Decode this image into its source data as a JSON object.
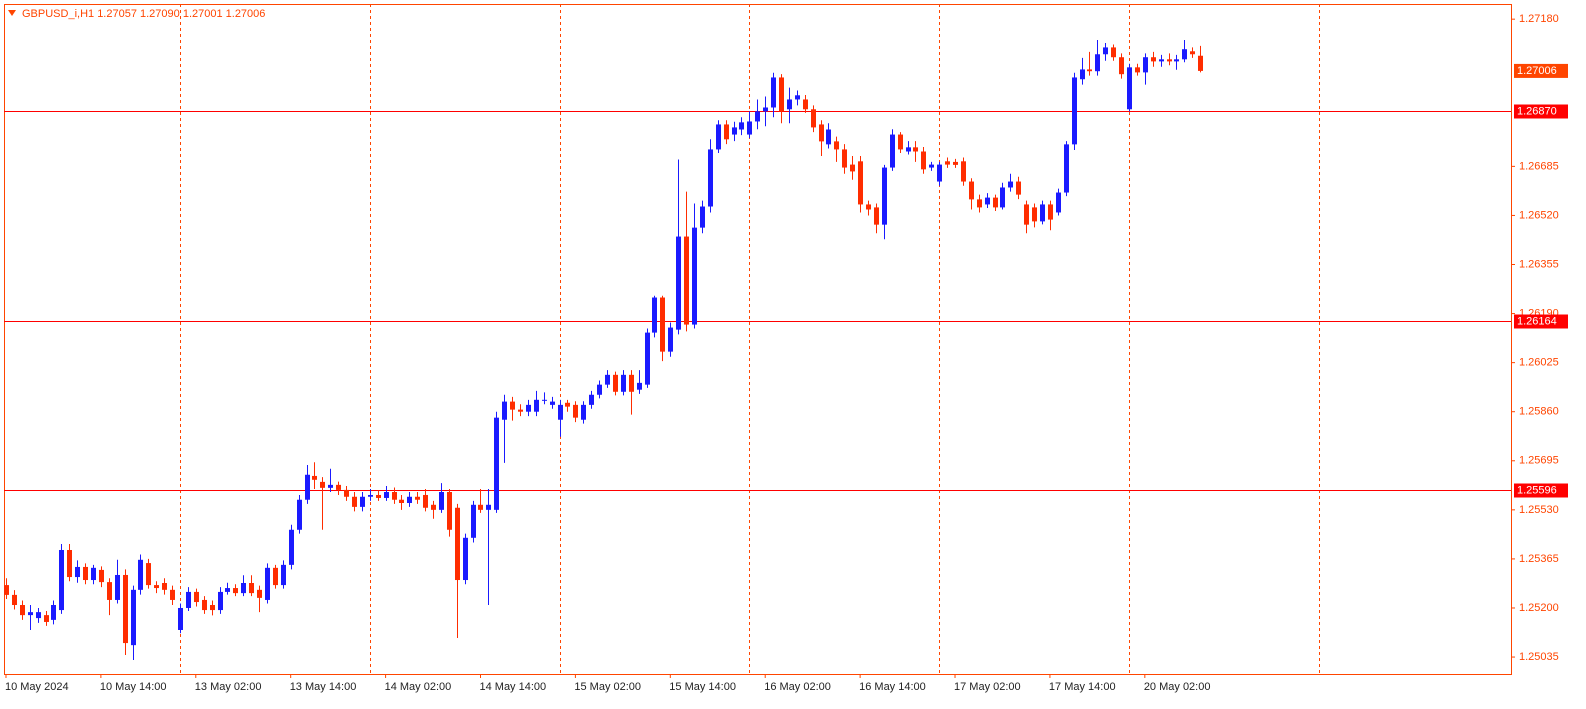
{
  "chart_data": {
    "type": "candlestick",
    "title": "GBPUSD_i,H1  1.27057 1.27090 1.27001 1.27006",
    "bull_color": "#1a1aff",
    "bear_color": "#ff2d00",
    "grid_color": "#ff4500",
    "level_color": "#ff0000",
    "ylim": [
      1.24978,
      1.27231
    ],
    "xlim": [
      -0.25,
      190.3
    ],
    "yticks": [
      {
        "value": 1.2718,
        "label": "1.27180"
      },
      {
        "value": 1.26685,
        "label": "1.26685"
      },
      {
        "value": 1.2652,
        "label": "1.26520"
      },
      {
        "value": 1.26355,
        "label": "1.26355"
      },
      {
        "value": 1.2619,
        "label": "1.26190"
      },
      {
        "value": 1.26025,
        "label": "1.26025"
      },
      {
        "value": 1.2586,
        "label": "1.25860"
      },
      {
        "value": 1.25695,
        "label": "1.25695"
      },
      {
        "value": 1.2553,
        "label": "1.25530"
      },
      {
        "value": 1.25365,
        "label": "1.25365"
      },
      {
        "value": 1.252,
        "label": "1.25200"
      },
      {
        "value": 1.25035,
        "label": "1.25035"
      }
    ],
    "xticks": [
      {
        "value": 0,
        "label": "10 May 2024"
      },
      {
        "value": 12,
        "label": "10 May 14:00"
      },
      {
        "value": 24,
        "label": "13 May 02:00"
      },
      {
        "value": 36,
        "label": "13 May 14:00"
      },
      {
        "value": 48,
        "label": "14 May 02:00"
      },
      {
        "value": 60,
        "label": "14 May 14:00"
      },
      {
        "value": 72,
        "label": "15 May 02:00"
      },
      {
        "value": 84,
        "label": "15 May 14:00"
      },
      {
        "value": 96,
        "label": "16 May 02:00"
      },
      {
        "value": 108,
        "label": "16 May 14:00"
      },
      {
        "value": 120,
        "label": "17 May 02:00"
      },
      {
        "value": 132,
        "label": "17 May 14:00"
      },
      {
        "value": 144,
        "label": "20 May 02:00"
      }
    ],
    "xgrid": [
      22,
      46,
      70,
      94,
      118,
      142,
      166
    ],
    "hlines": [
      {
        "value": 1.2687,
        "label": "1.26870"
      },
      {
        "value": 1.26164,
        "label": "1.26164"
      },
      {
        "value": 1.25596,
        "label": "1.25596"
      }
    ],
    "price_label": {
      "value": 1.27006,
      "label": "1.27006"
    },
    "ohlc": [
      [
        1.25277,
        1.253,
        1.2523,
        1.25244
      ],
      [
        1.25244,
        1.2526,
        1.25195,
        1.2521
      ],
      [
        1.2521,
        1.25225,
        1.2516,
        1.25176
      ],
      [
        1.25176,
        1.2521,
        1.25126,
        1.25186
      ],
      [
        1.25166,
        1.252,
        1.2515,
        1.25186
      ],
      [
        1.25176,
        1.2519,
        1.2514,
        1.25153
      ],
      [
        1.2516,
        1.25225,
        1.25145,
        1.2521
      ],
      [
        1.25193,
        1.25415,
        1.2518,
        1.25395
      ],
      [
        1.25395,
        1.25415,
        1.2529,
        1.25304
      ],
      [
        1.25304,
        1.2536,
        1.25285,
        1.25338
      ],
      [
        1.25338,
        1.2535,
        1.2528,
        1.25294
      ],
      [
        1.25294,
        1.25345,
        1.2528,
        1.25335
      ],
      [
        1.25328,
        1.2534,
        1.2527,
        1.25287
      ],
      [
        1.25287,
        1.253,
        1.25176,
        1.25227
      ],
      [
        1.25227,
        1.25362,
        1.25215,
        1.25311
      ],
      [
        1.25311,
        1.2533,
        1.25042,
        1.25082
      ],
      [
        1.25075,
        1.25275,
        1.25025,
        1.25261
      ],
      [
        1.25261,
        1.2538,
        1.25245,
        1.25362
      ],
      [
        1.25351,
        1.25365,
        1.25265,
        1.25277
      ],
      [
        1.25277,
        1.2529,
        1.2525,
        1.25267
      ],
      [
        1.25284,
        1.253,
        1.25245,
        1.25261
      ],
      [
        1.25261,
        1.25275,
        1.2521,
        1.25227
      ],
      [
        1.25126,
        1.25215,
        1.25115,
        1.252
      ],
      [
        1.252,
        1.2527,
        1.2519,
        1.25254
      ],
      [
        1.25254,
        1.25265,
        1.25205,
        1.2522
      ],
      [
        1.25227,
        1.2524,
        1.2518,
        1.25193
      ],
      [
        1.2521,
        1.25225,
        1.25175,
        1.25193
      ],
      [
        1.25193,
        1.2527,
        1.2518,
        1.25254
      ],
      [
        1.25254,
        1.25285,
        1.25245,
        1.25267
      ],
      [
        1.25267,
        1.2528,
        1.2524,
        1.2525
      ],
      [
        1.2525,
        1.2531,
        1.2524,
        1.25284
      ],
      [
        1.25284,
        1.2531,
        1.2524,
        1.2525
      ],
      [
        1.25261,
        1.25275,
        1.25186,
        1.25234
      ],
      [
        1.25227,
        1.2535,
        1.25215,
        1.25335
      ],
      [
        1.25335,
        1.25345,
        1.25265,
        1.25277
      ],
      [
        1.25277,
        1.2536,
        1.25265,
        1.25345
      ],
      [
        1.25345,
        1.2548,
        1.2533,
        1.25463
      ],
      [
        1.25463,
        1.2558,
        1.2545,
        1.25564
      ],
      [
        1.25564,
        1.25681,
        1.2555,
        1.25648
      ],
      [
        1.25644,
        1.2569,
        1.256,
        1.25631
      ],
      [
        1.25624,
        1.2564,
        1.25463,
        1.25604
      ],
      [
        1.25604,
        1.25668,
        1.2559,
        1.25614
      ],
      [
        1.25614,
        1.25625,
        1.2558,
        1.25597
      ],
      [
        1.25597,
        1.2561,
        1.2556,
        1.25574
      ],
      [
        1.25574,
        1.2559,
        1.25525,
        1.2554
      ],
      [
        1.2554,
        1.2559,
        1.25525,
        1.25574
      ],
      [
        1.25574,
        1.256,
        1.2556,
        1.2558
      ],
      [
        1.2558,
        1.25595,
        1.2556,
        1.2557
      ],
      [
        1.2557,
        1.2561,
        1.2556,
        1.2559
      ],
      [
        1.2559,
        1.25605,
        1.2555,
        1.25564
      ],
      [
        1.25564,
        1.2558,
        1.2553,
        1.25553
      ],
      [
        1.25553,
        1.2559,
        1.2554,
        1.25574
      ],
      [
        1.25574,
        1.2559,
        1.2555,
        1.25564
      ],
      [
        1.2558,
        1.256,
        1.25525,
        1.25537
      ],
      [
        1.25547,
        1.2556,
        1.255,
        1.2553
      ],
      [
        1.2553,
        1.2562,
        1.2552,
        1.2559
      ],
      [
        1.2559,
        1.256,
        1.2544,
        1.25463
      ],
      [
        1.25537,
        1.2555,
        1.25099,
        1.25294
      ],
      [
        1.25294,
        1.2545,
        1.2528,
        1.25436
      ],
      [
        1.25436,
        1.2556,
        1.2542,
        1.25547
      ],
      [
        1.25547,
        1.256,
        1.2552,
        1.2553
      ],
      [
        1.2553,
        1.256,
        1.2521,
        1.25547
      ],
      [
        1.2553,
        1.2586,
        1.2552,
        1.2584
      ],
      [
        1.25833,
        1.25917,
        1.25688,
        1.25894
      ],
      [
        1.25894,
        1.2591,
        1.2583,
        1.25867
      ],
      [
        1.25867,
        1.25885,
        1.25845,
        1.2586
      ],
      [
        1.2586,
        1.259,
        1.25845,
        1.25883
      ],
      [
        1.2586,
        1.2593,
        1.25845,
        1.259
      ],
      [
        1.259,
        1.25925,
        1.25885,
        1.259
      ],
      [
        1.25883,
        1.2591,
        1.2587,
        1.25894
      ],
      [
        1.25833,
        1.259,
        1.25776,
        1.25883
      ],
      [
        1.2589,
        1.259,
        1.2586,
        1.25877
      ],
      [
        1.25883,
        1.25895,
        1.25825,
        1.2584
      ],
      [
        1.25833,
        1.25895,
        1.2582,
        1.25883
      ],
      [
        1.25883,
        1.2593,
        1.2587,
        1.25917
      ],
      [
        1.25917,
        1.25965,
        1.25905,
        1.25951
      ],
      [
        1.25951,
        1.26,
        1.2594,
        1.25984
      ],
      [
        1.25984,
        1.25995,
        1.25915,
        1.25927
      ],
      [
        1.25927,
        1.26,
        1.25915,
        1.25984
      ],
      [
        1.25984,
        1.26,
        1.2585,
        1.25927
      ],
      [
        1.25934,
        1.26,
        1.2592,
        1.25957
      ],
      [
        1.25951,
        1.2614,
        1.2594,
        1.26126
      ],
      [
        1.26126,
        1.2625,
        1.2611,
        1.26244
      ],
      [
        1.26244,
        1.2625,
        1.2603,
        1.26062
      ],
      [
        1.26062,
        1.2616,
        1.26045,
        1.26143
      ],
      [
        1.26136,
        1.26708,
        1.2612,
        1.26449
      ],
      [
        1.26449,
        1.266,
        1.2613,
        1.26153
      ],
      [
        1.26153,
        1.2656,
        1.2614,
        1.26479
      ],
      [
        1.26479,
        1.2657,
        1.2646,
        1.2655
      ],
      [
        1.2655,
        1.26776,
        1.2653,
        1.26742
      ],
      [
        1.26742,
        1.2684,
        1.2673,
        1.26826
      ],
      [
        1.26826,
        1.2684,
        1.2676,
        1.26776
      ],
      [
        1.26792,
        1.26835,
        1.2677,
        1.26816
      ],
      [
        1.26809,
        1.2685,
        1.2679,
        1.26833
      ],
      [
        1.26792,
        1.2687,
        1.2678,
        1.26836
      ],
      [
        1.26836,
        1.2691,
        1.2681,
        1.2687
      ],
      [
        1.2687,
        1.2692,
        1.2682,
        1.26883
      ],
      [
        1.26883,
        1.27,
        1.2685,
        1.26984
      ],
      [
        1.26984,
        1.26995,
        1.2683,
        1.2687
      ],
      [
        1.26877,
        1.2695,
        1.2683,
        1.2691
      ],
      [
        1.2691,
        1.2694,
        1.2689,
        1.26924
      ],
      [
        1.2691,
        1.26925,
        1.26865,
        1.26877
      ],
      [
        1.26877,
        1.2689,
        1.268,
        1.26816
      ],
      [
        1.26826,
        1.2684,
        1.2672,
        1.26769
      ],
      [
        1.26759,
        1.2683,
        1.26745,
        1.26809
      ],
      [
        1.26769,
        1.26785,
        1.267,
        1.26742
      ],
      [
        1.26742,
        1.2676,
        1.2666,
        1.26681
      ],
      [
        1.26691,
        1.2672,
        1.2664,
        1.26668
      ],
      [
        1.26702,
        1.2672,
        1.2653,
        1.26557
      ],
      [
        1.26557,
        1.2657,
        1.2652,
        1.2654
      ],
      [
        1.26547,
        1.2656,
        1.2646,
        1.26489
      ],
      [
        1.26489,
        1.2669,
        1.2644,
        1.26681
      ],
      [
        1.26681,
        1.2681,
        1.2667,
        1.26792
      ],
      [
        1.26792,
        1.268,
        1.2673,
        1.26742
      ],
      [
        1.26735,
        1.2677,
        1.26725,
        1.26749
      ],
      [
        1.26749,
        1.2677,
        1.267,
        1.26735
      ],
      [
        1.26735,
        1.2675,
        1.2666,
        1.26675
      ],
      [
        1.26681,
        1.267,
        1.2667,
        1.26691
      ],
      [
        1.26634,
        1.267,
        1.2662,
        1.26691
      ],
      [
        1.26702,
        1.26715,
        1.2668,
        1.26691
      ],
      [
        1.267,
        1.2671,
        1.2668,
        1.2669
      ],
      [
        1.26702,
        1.26715,
        1.2662,
        1.26634
      ],
      [
        1.26634,
        1.26645,
        1.2654,
        1.26574
      ],
      [
        1.26574,
        1.2659,
        1.2653,
        1.26547
      ],
      [
        1.26557,
        1.26595,
        1.26545,
        1.2658
      ],
      [
        1.2658,
        1.2659,
        1.26535,
        1.26547
      ],
      [
        1.26547,
        1.2663,
        1.2654,
        1.26614
      ],
      [
        1.26614,
        1.2666,
        1.266,
        1.26634
      ],
      [
        1.26634,
        1.2665,
        1.26575,
        1.2659
      ],
      [
        1.26557,
        1.2657,
        1.2646,
        1.26489
      ],
      [
        1.26547,
        1.2656,
        1.2648,
        1.265
      ],
      [
        1.265,
        1.2657,
        1.2649,
        1.26557
      ],
      [
        1.26557,
        1.2657,
        1.2647,
        1.26506
      ],
      [
        1.2653,
        1.2661,
        1.2652,
        1.26597
      ],
      [
        1.26597,
        1.2677,
        1.26585,
        1.26759
      ],
      [
        1.26759,
        1.27,
        1.2674,
        1.26984
      ],
      [
        1.26978,
        1.2705,
        1.2696,
        1.27011
      ],
      [
        1.27011,
        1.2707,
        1.2699,
        1.27005
      ],
      [
        1.27005,
        1.2711,
        1.2699,
        1.27062
      ],
      [
        1.27062,
        1.271,
        1.2704,
        1.27085
      ],
      [
        1.27085,
        1.27095,
        1.2704,
        1.27052
      ],
      [
        1.27052,
        1.27065,
        1.2698,
        1.26995
      ],
      [
        1.26877,
        1.2703,
        1.2687,
        1.27018
      ],
      [
        1.27018,
        1.2703,
        1.2699,
        1.27001
      ],
      [
        1.27001,
        1.27065,
        1.2696,
        1.27052
      ],
      [
        1.27052,
        1.2707,
        1.2702,
        1.27038
      ],
      [
        1.27038,
        1.2706,
        1.2702,
        1.27045
      ],
      [
        1.27045,
        1.27065,
        1.27025,
        1.27038
      ],
      [
        1.27038,
        1.2706,
        1.2701,
        1.27045
      ],
      [
        1.27045,
        1.2711,
        1.27035,
        1.27079
      ],
      [
        1.27072,
        1.27085,
        1.2705,
        1.27062
      ],
      [
        1.27057,
        1.2709,
        1.27001,
        1.27006
      ]
    ]
  }
}
